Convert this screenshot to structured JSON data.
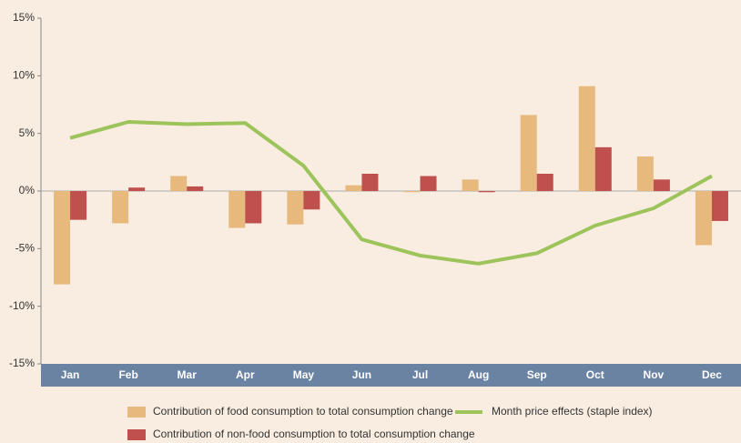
{
  "chart_data": {
    "type": "bar",
    "categories": [
      "Jan",
      "Feb",
      "Mar",
      "Apr",
      "May",
      "Jun",
      "Jul",
      "Aug",
      "Sep",
      "Oct",
      "Nov",
      "Dec"
    ],
    "series": [
      {
        "name": "Contribution of food consumption to total consumption change",
        "type": "bar",
        "color": "#e8b97d",
        "values": [
          -8.1,
          -2.8,
          1.3,
          -3.2,
          -2.9,
          0.5,
          -0.1,
          1.0,
          6.6,
          9.1,
          3.0,
          -4.7
        ]
      },
      {
        "name": "Contribution of non-food consumption to total consumption change",
        "type": "bar",
        "color": "#c0504d",
        "values": [
          -2.5,
          0.3,
          0.4,
          -2.8,
          -1.6,
          1.5,
          1.3,
          -0.1,
          1.5,
          3.8,
          1.0,
          -2.6
        ]
      },
      {
        "name": "Month price effects (staple index)",
        "type": "line",
        "color": "#9dc35b",
        "values": [
          4.6,
          6.0,
          5.8,
          5.9,
          2.2,
          -4.2,
          -5.6,
          -6.3,
          -5.4,
          -3.0,
          -1.5,
          1.3
        ]
      }
    ],
    "ylim": [
      -15,
      15
    ],
    "yticks": [
      {
        "value": -15,
        "label": "-15%"
      },
      {
        "value": -10,
        "label": "-10%"
      },
      {
        "value": -5,
        "label": "-5%"
      },
      {
        "value": 0,
        "label": "0%"
      },
      {
        "value": 5,
        "label": "5%"
      },
      {
        "value": 10,
        "label": "10%"
      },
      {
        "value": 15,
        "label": "15%"
      }
    ],
    "grid": false
  }
}
